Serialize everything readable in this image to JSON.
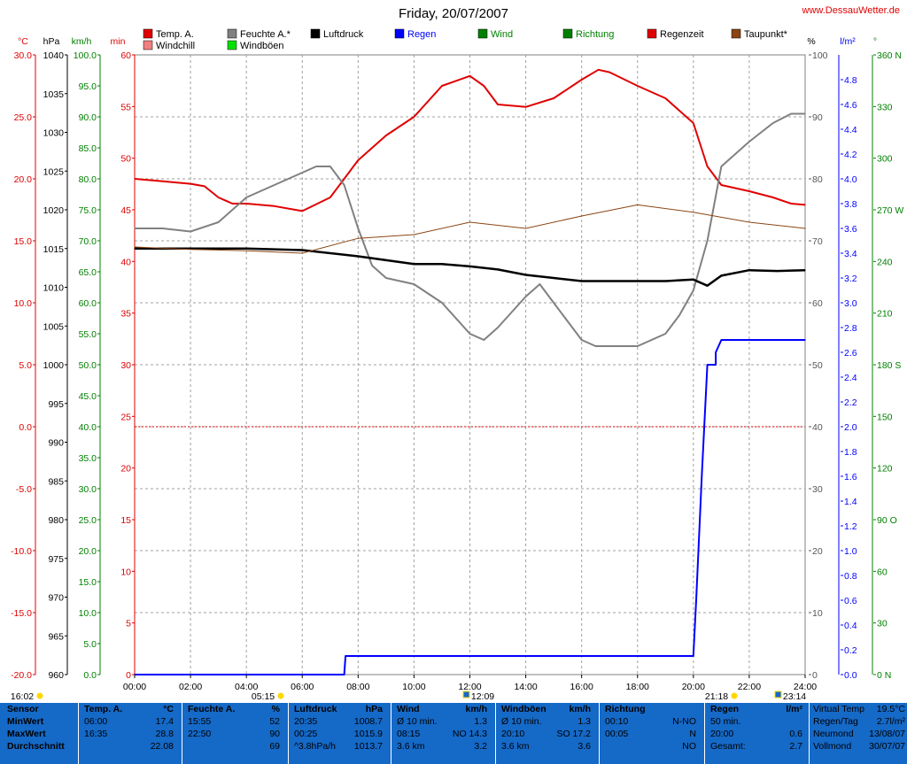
{
  "title": "Friday, 20/07/2007",
  "site": "www.DessauWetter.de",
  "colors": {
    "temp": "#e00000",
    "windchill": "#f08080",
    "feuchte": "#808080",
    "luftdruck": "#000000",
    "regen": "#0000ff",
    "wind": "#008000",
    "windboen": "#00e000",
    "richtung": "#008000",
    "regenzeit": "#e00000",
    "taupunkt": "#8b4513",
    "grid": "#a0a0a0",
    "zero_line": "#e00000",
    "panel": "#1569c7"
  },
  "legend": [
    {
      "label": "Temp. A.",
      "color": "#e00000"
    },
    {
      "label": "Windchill",
      "color": "#f08080"
    },
    {
      "label": "Feuchte A.*",
      "color": "#808080"
    },
    {
      "label": "Windböen",
      "color": "#00e000"
    },
    {
      "label": "Luftdruck",
      "color": "#000000"
    },
    {
      "label": "Regen",
      "color": "#0000ff"
    },
    {
      "label": "Wind",
      "color": "#008000"
    },
    {
      "label": "Richtung",
      "color": "#008000"
    },
    {
      "label": "Regenzeit",
      "color": "#e00000"
    },
    {
      "label": "Taupunkt*",
      "color": "#8b4513"
    }
  ],
  "axes_units": {
    "temp": "°C",
    "hpa": "hPa",
    "kmh": "km/h",
    "min": "min",
    "pct": "%",
    "rain": "l/m²",
    "deg": "°"
  },
  "chart_data": {
    "type": "line",
    "x_unit": "time of day",
    "x_ticks": [
      "00:00",
      "02:00",
      "04:00",
      "06:00",
      "08:00",
      "10:00",
      "12:00",
      "14:00",
      "16:00",
      "18:00",
      "20:00",
      "22:00",
      "24:00"
    ],
    "axes": {
      "temp_c": {
        "range": [
          -20,
          30
        ],
        "ticks": [
          "30.0",
          "25.0",
          "20.0",
          "15.0",
          "10.0",
          "5.0",
          "0.0",
          "-5.0",
          "-10.0",
          "-15.0",
          "-20.0"
        ]
      },
      "pressure_hpa": {
        "range": [
          960,
          1040
        ],
        "ticks": [
          "1040",
          "1035",
          "1030",
          "1025",
          "1020",
          "1015",
          "1010",
          "1005",
          "1000",
          "995",
          "990",
          "985",
          "980",
          "975",
          "970",
          "965",
          "960"
        ]
      },
      "wind_kmh": {
        "range": [
          0,
          100
        ],
        "ticks": [
          "100.0",
          "95.0",
          "90.0",
          "85.0",
          "80.0",
          "75.0",
          "70.0",
          "65.0",
          "60.0",
          "55.0",
          "50.0",
          "45.0",
          "40.0",
          "35.0",
          "30.0",
          "25.0",
          "20.0",
          "15.0",
          "10.0",
          "5.0",
          "0.0"
        ]
      },
      "rain_time_min": {
        "range": [
          0,
          60
        ],
        "ticks": [
          "60",
          "55",
          "50",
          "45",
          "40",
          "35",
          "30",
          "25",
          "20",
          "15",
          "10",
          "5",
          "0"
        ]
      },
      "humidity_pct": {
        "range": [
          0,
          100
        ],
        "ticks": [
          "100",
          "90",
          "80",
          "70",
          "60",
          "50",
          "40",
          "30",
          "20",
          "10",
          "0"
        ]
      },
      "rain_lm2": {
        "range": [
          0,
          5
        ],
        "ticks": [
          "4.8",
          "4.6",
          "4.4",
          "4.2",
          "4.0",
          "3.8",
          "3.6",
          "3.4",
          "3.2",
          "3.0",
          "2.8",
          "2.6",
          "2.4",
          "2.2",
          "2.0",
          "1.8",
          "1.6",
          "1.4",
          "1.2",
          "1.0",
          "0.8",
          "0.6",
          "0.4",
          "0.2",
          "0.0"
        ]
      },
      "direction_deg": {
        "range": [
          0,
          360
        ],
        "ticks": [
          "360 N",
          "330",
          "300",
          "270 W",
          "240",
          "210",
          "180 S",
          "150",
          "120",
          "90 O",
          "60",
          "30",
          "0 N"
        ]
      }
    },
    "series": [
      {
        "name": "Temp. A.",
        "axis": "temp_c",
        "x": [
          0,
          1,
          2,
          2.5,
          3,
          3.5,
          4,
          5,
          6,
          7,
          7.5,
          8,
          9,
          10,
          11,
          12,
          12.5,
          13,
          14,
          15,
          16,
          16.6,
          17,
          18,
          19,
          20,
          20.5,
          21,
          22,
          22.85,
          23.5,
          24
        ],
        "values": [
          20,
          19.8,
          19.6,
          19.4,
          18.5,
          18,
          18,
          17.8,
          17.4,
          18.5,
          20,
          21.5,
          23.5,
          25,
          27.5,
          28.3,
          27.5,
          26,
          25.8,
          26.5,
          28,
          28.8,
          28.6,
          27.5,
          26.5,
          24.5,
          21,
          19.5,
          19,
          18.5,
          18,
          17.9
        ]
      },
      {
        "name": "Feuchte A.*",
        "axis": "humidity_pct",
        "x": [
          0,
          1,
          2,
          3,
          4,
          5,
          6,
          6.5,
          7,
          7.5,
          8,
          8.5,
          9,
          10,
          11,
          12,
          12.5,
          13,
          14,
          14.5,
          15,
          16,
          16.5,
          17,
          18,
          19,
          19.5,
          20,
          20.5,
          21,
          22,
          22.85,
          23.5,
          24
        ],
        "values": [
          72,
          72,
          71.5,
          73,
          77,
          79,
          81,
          82,
          82,
          79,
          72,
          66,
          64,
          63,
          60,
          55,
          54,
          56,
          61,
          63,
          60,
          54,
          53,
          53,
          53,
          55,
          58,
          62,
          70,
          82,
          86,
          89,
          90.5,
          90.5
        ]
      },
      {
        "name": "Luftdruck",
        "axis": "pressure_hpa",
        "x": [
          0,
          2,
          4,
          6,
          8,
          9,
          10,
          11,
          12,
          13,
          14,
          15,
          16,
          17,
          18,
          19,
          20,
          20.5,
          21,
          22,
          23,
          24
        ],
        "values": [
          1015,
          1015,
          1015,
          1014.8,
          1014,
          1013.5,
          1013,
          1013,
          1012.7,
          1012.3,
          1011.6,
          1011.2,
          1010.8,
          1010.8,
          1010.8,
          1010.8,
          1011,
          1010.2,
          1011.5,
          1012.2,
          1012.1,
          1012.2
        ]
      },
      {
        "name": "Taupunkt*",
        "axis": "temp_c",
        "x": [
          0,
          2,
          4,
          6,
          8,
          10,
          12,
          14,
          16,
          18,
          20,
          22,
          24
        ],
        "values": [
          14.5,
          14.3,
          14.2,
          14,
          15.2,
          15.5,
          16.5,
          16,
          17,
          17.9,
          17.3,
          16.5,
          16
        ]
      },
      {
        "name": "Regen",
        "axis": "rain_lm2",
        "x": [
          0,
          7.5,
          7.55,
          20,
          20.1,
          20.3,
          20.5,
          20.8,
          21,
          24
        ],
        "values": [
          0,
          0,
          0.15,
          0.15,
          0.6,
          1.6,
          2.5,
          2.6,
          2.7,
          2.7
        ]
      },
      {
        "name": "Wind",
        "axis": "wind_kmh",
        "summary": {
          "avg": 3.2,
          "max_10min": 14.3,
          "min_10min": 1.3
        }
      },
      {
        "name": "Windböen",
        "axis": "wind_kmh",
        "summary": {
          "avg": 3.6,
          "max_10min": 17.2,
          "min_10min": 1.3
        }
      }
    ],
    "markers": [
      {
        "label": "16:02",
        "position": "sunset previous day"
      },
      {
        "label": "05:15",
        "position": "sunrise"
      },
      {
        "label": "12:09",
        "position": "moonrise"
      },
      {
        "label": "21:18",
        "position": "sunset"
      },
      {
        "label": "23:14",
        "position": "moonset"
      }
    ],
    "grid": true
  },
  "stats_labels": {
    "sensor": "Sensor",
    "min": "MinWert",
    "max": "MaxWert",
    "avg": "Durchschnitt"
  },
  "stats": [
    {
      "title": "Temp. A.",
      "unit": "°C",
      "rows": [
        [
          "06:00",
          "17.4"
        ],
        [
          "16:35",
          "28.8"
        ],
        [
          "",
          "22.08"
        ]
      ]
    },
    {
      "title": "Feuchte A.",
      "unit": "%",
      "rows": [
        [
          "15:55",
          "52"
        ],
        [
          "22:50",
          "90"
        ],
        [
          "",
          "69"
        ]
      ]
    },
    {
      "title": "Luftdruck",
      "unit": "hPa",
      "rows": [
        [
          "20:35",
          "1008.7"
        ],
        [
          "00:25",
          "1015.9"
        ],
        [
          "^3.8hPa/h",
          "1013.7"
        ]
      ]
    },
    {
      "title": "Wind",
      "unit": "km/h",
      "rows": [
        [
          "Ø 10 min.",
          "1.3"
        ],
        [
          "08:15",
          "NO 14.3"
        ],
        [
          "3.6 km",
          "3.2"
        ]
      ]
    },
    {
      "title": "Windböen",
      "unit": "km/h",
      "rows": [
        [
          "Ø 10 min.",
          "1.3"
        ],
        [
          "20:10",
          "SO 17.2"
        ],
        [
          "3.6 km",
          "3.6"
        ]
      ]
    },
    {
      "title": "Richtung",
      "unit": "",
      "rows": [
        [
          "00:10",
          "N-NO"
        ],
        [
          "00:05",
          "N"
        ],
        [
          "",
          "NO"
        ]
      ]
    },
    {
      "title": "Regen",
      "unit": "l/m²",
      "rows": [
        [
          "50 min.",
          ""
        ],
        [
          "20:00",
          "0.6"
        ],
        [
          "Gesamt:",
          "2.7"
        ]
      ]
    }
  ],
  "extra": [
    {
      "k": "Virtual Temp",
      "v": "19.5°C"
    },
    {
      "k": "Regen/Tag",
      "v": "2.7l/m²"
    },
    {
      "k": "Neumond",
      "v": "13/08/07"
    },
    {
      "k": "Vollmond",
      "v": "30/07/07"
    }
  ]
}
